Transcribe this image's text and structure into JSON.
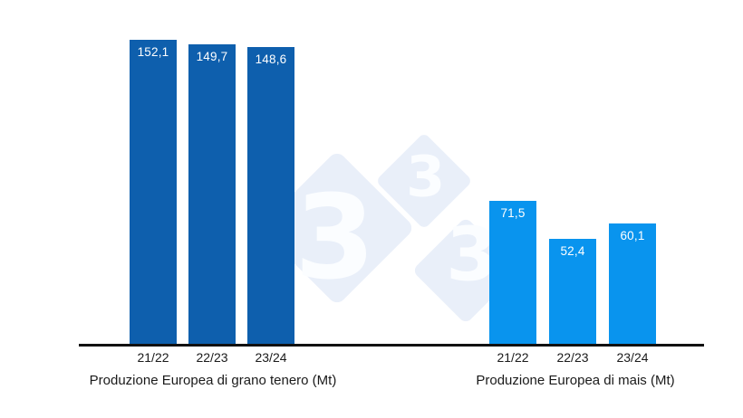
{
  "watermark": {
    "digit": "3",
    "diamond_color": "#e9eff9",
    "digit_color": "#fbfdff"
  },
  "axis": {
    "color": "#111111",
    "baseline_value": 0
  },
  "chart_data": [
    {
      "type": "bar",
      "title": "Produzione Europea di grano tenero (Mt)",
      "categories": [
        "21/22",
        "22/23",
        "23/24"
      ],
      "values": [
        152.1,
        149.7,
        148.6
      ],
      "value_labels": [
        "152,1",
        "149,7",
        "148,6"
      ],
      "bar_color": "#0e5fad",
      "value_label_color": "#ffffff",
      "ylim": [
        0,
        160
      ],
      "grid": false,
      "legend": false
    },
    {
      "type": "bar",
      "title": "Produzione Europea di mais (Mt)",
      "categories": [
        "21/22",
        "22/23",
        "23/24"
      ],
      "values": [
        71.5,
        52.4,
        60.1
      ],
      "value_labels": [
        "71,5",
        "52,4",
        "60,1"
      ],
      "bar_color": "#0994ee",
      "value_label_color": "#ffffff",
      "ylim": [
        0,
        160
      ],
      "grid": false,
      "legend": false
    }
  ]
}
